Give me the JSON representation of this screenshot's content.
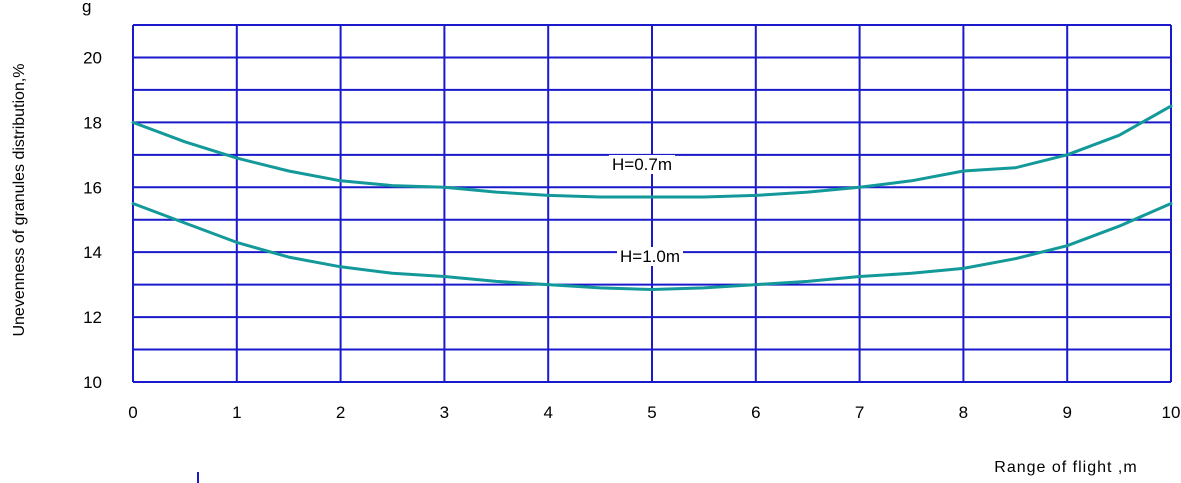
{
  "chart_data": {
    "type": "line",
    "title": "",
    "xlabel": "Range of flight ,m",
    "ylabel": "Unevenness of granules distribution,%",
    "xlim": [
      0,
      10
    ],
    "ylim": [
      10,
      21
    ],
    "x_ticks": [
      "0",
      "1",
      "2",
      "3",
      "4",
      "5",
      "6",
      "7",
      "8",
      "9",
      "10"
    ],
    "y_ticks": [
      "10",
      "12",
      "14",
      "16",
      "18",
      "20"
    ],
    "grid": true,
    "colors": {
      "grid": "#1a1acc",
      "line": "#139999",
      "background": "#ffffff"
    },
    "series": [
      {
        "name": "H=0.7m",
        "x": [
          0,
          0.5,
          1,
          1.5,
          2,
          2.5,
          3,
          3.5,
          4,
          4.5,
          5,
          5.5,
          6,
          6.5,
          7,
          7.5,
          8,
          8.5,
          9,
          9.5,
          10
        ],
        "y": [
          18.0,
          17.4,
          16.9,
          16.5,
          16.2,
          16.05,
          16.0,
          15.85,
          15.75,
          15.7,
          15.7,
          15.7,
          15.75,
          15.85,
          16.0,
          16.2,
          16.5,
          16.6,
          17.0,
          17.6,
          18.5
        ]
      },
      {
        "name": "H=1.0m",
        "x": [
          0,
          0.5,
          1,
          1.5,
          2,
          2.5,
          3,
          3.5,
          4,
          4.5,
          5,
          5.5,
          6,
          6.5,
          7,
          7.5,
          8,
          8.5,
          9,
          9.5,
          10
        ],
        "y": [
          15.5,
          14.9,
          14.3,
          13.85,
          13.55,
          13.35,
          13.25,
          13.1,
          13.0,
          12.9,
          12.85,
          12.9,
          13.0,
          13.1,
          13.25,
          13.35,
          13.5,
          13.8,
          14.2,
          14.8,
          15.5
        ]
      }
    ]
  }
}
